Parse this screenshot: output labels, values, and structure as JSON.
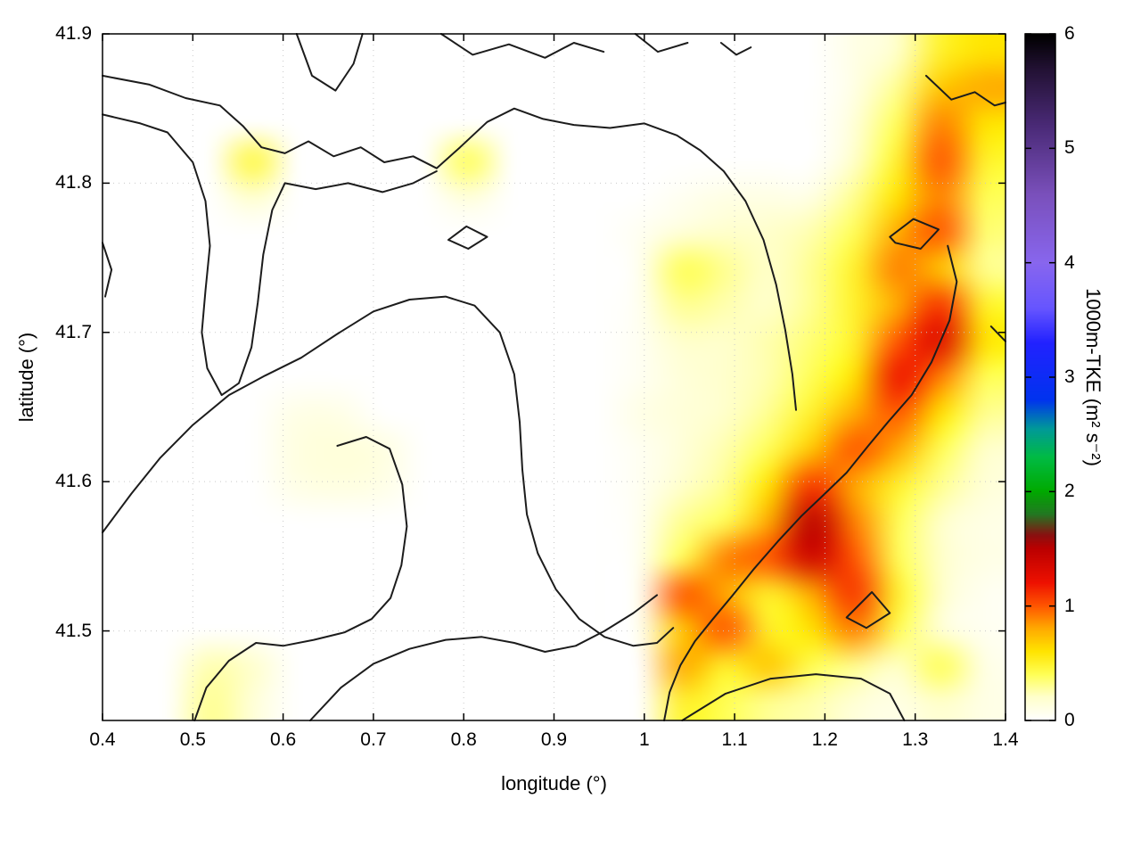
{
  "chart_data": {
    "type": "heatmap",
    "title": "",
    "xlabel": "longitude (°)",
    "ylabel": "latitude (°)",
    "colorbar_label": "1000m-TKE (m² s⁻²)",
    "xlim": [
      0.4,
      1.4
    ],
    "ylim": [
      41.44,
      41.9
    ],
    "cblim": [
      0,
      6
    ],
    "grid": true,
    "legend": "none",
    "x_tick_values": [
      0.4,
      0.5,
      0.6,
      0.7,
      0.8,
      0.9,
      1.0,
      1.1,
      1.2,
      1.3,
      1.4
    ],
    "x_tick_labels": [
      "0.4",
      "0.5",
      "0.6",
      "0.7",
      "0.8",
      "0.9",
      "1",
      "1.1",
      "1.2",
      "1.3",
      "1.4"
    ],
    "y_tick_values": [
      41.5,
      41.6,
      41.7,
      41.8,
      41.9
    ],
    "y_tick_labels": [
      "41.5",
      "41.6",
      "41.7",
      "41.8",
      "41.9"
    ],
    "cb_tick_values": [
      0,
      1,
      2,
      3,
      4,
      5,
      6
    ],
    "cb_tick_labels": [
      "0",
      "1",
      "2",
      "3",
      "4",
      "5",
      "6"
    ],
    "contour_color": "#1c1c1c",
    "palette": [
      [
        0.0,
        "#ffffff"
      ],
      [
        0.2,
        "#ffffcc"
      ],
      [
        0.4,
        "#ffff55"
      ],
      [
        0.6,
        "#ffe400"
      ],
      [
        0.8,
        "#ffaa00"
      ],
      [
        1.0,
        "#ff5500"
      ],
      [
        1.2,
        "#ee1100"
      ],
      [
        1.5,
        "#bb0000"
      ],
      [
        1.62,
        "#881111"
      ],
      [
        1.8,
        "#227722"
      ],
      [
        2.0,
        "#00aa00"
      ],
      [
        2.3,
        "#00bb44"
      ],
      [
        2.55,
        "#009999"
      ],
      [
        2.8,
        "#0033ee"
      ],
      [
        3.3,
        "#2222ff"
      ],
      [
        3.6,
        "#6655ff"
      ],
      [
        4.0,
        "#8866ee"
      ],
      [
        4.6,
        "#7a50bb"
      ],
      [
        5.2,
        "#4a2a77"
      ],
      [
        5.7,
        "#221133"
      ],
      [
        6.0,
        "#000000"
      ]
    ],
    "x": [
      0.4,
      0.45,
      0.5,
      0.55,
      0.6,
      0.65,
      0.7,
      0.75,
      0.8,
      0.85,
      0.9,
      0.95,
      1.0,
      1.05,
      1.1,
      1.15,
      1.2,
      1.25,
      1.3,
      1.35,
      1.4
    ],
    "y": [
      41.9,
      41.875,
      41.85,
      41.825,
      41.8,
      41.775,
      41.75,
      41.725,
      41.7,
      41.675,
      41.65,
      41.625,
      41.6,
      41.575,
      41.55,
      41.525,
      41.5,
      41.475,
      41.45
    ],
    "values": [
      [
        0,
        0,
        0,
        0,
        0,
        0,
        0,
        0,
        0,
        0,
        0,
        0,
        0,
        0,
        0,
        0,
        0,
        0.1,
        0.2,
        0.5,
        0.6
      ],
      [
        0,
        0,
        0,
        0,
        0,
        0,
        0,
        0,
        0,
        0,
        0,
        0,
        0,
        0,
        0,
        0,
        0,
        0.1,
        0.3,
        0.7,
        0.8
      ],
      [
        0,
        0,
        0,
        0,
        0,
        0,
        0,
        0,
        0,
        0,
        0,
        0,
        0,
        0,
        0,
        0,
        0,
        0.15,
        0.4,
        0.9,
        0.6
      ],
      [
        0,
        0,
        0,
        0.45,
        0,
        0,
        0,
        0,
        0.4,
        0,
        0,
        0,
        0,
        0,
        0,
        0,
        0,
        0.2,
        0.5,
        1.0,
        0.5
      ],
      [
        0,
        0,
        0,
        0.2,
        0,
        0,
        0,
        0,
        0.15,
        0,
        0,
        0,
        0,
        0.05,
        0.1,
        0.1,
        0.1,
        0.3,
        0.6,
        0.9,
        0.4
      ],
      [
        0,
        0,
        0,
        0,
        0,
        0,
        0,
        0,
        0,
        0,
        0,
        0,
        0.05,
        0.15,
        0.2,
        0.2,
        0.25,
        0.4,
        0.8,
        1.0,
        0.35
      ],
      [
        0,
        0,
        0,
        0,
        0,
        0,
        0,
        0,
        0,
        0,
        0,
        0,
        0.05,
        0.4,
        0.3,
        0.2,
        0.3,
        0.5,
        0.9,
        0.7,
        0.3
      ],
      [
        0,
        0,
        0,
        0,
        0,
        0,
        0,
        0,
        0,
        0,
        0,
        0,
        0.05,
        0.3,
        0.25,
        0.2,
        0.3,
        0.5,
        0.8,
        1.1,
        0.5
      ],
      [
        0,
        0,
        0,
        0,
        0,
        0,
        0,
        0,
        0,
        0,
        0,
        0,
        0.05,
        0.2,
        0.2,
        0.25,
        0.35,
        0.5,
        1.0,
        1.3,
        0.6
      ],
      [
        0,
        0,
        0,
        0,
        0,
        0,
        0,
        0,
        0,
        0,
        0,
        0,
        0.05,
        0.15,
        0.2,
        0.25,
        0.4,
        0.6,
        1.2,
        0.9,
        0.4
      ],
      [
        0,
        0,
        0,
        0,
        0.1,
        0.1,
        0,
        0,
        0,
        0,
        0,
        0,
        0.1,
        0.15,
        0.2,
        0.3,
        0.5,
        0.8,
        1.0,
        0.6,
        0.3
      ],
      [
        0,
        0,
        0,
        0,
        0.12,
        0.15,
        0.12,
        0,
        0,
        0,
        0,
        0,
        0.05,
        0.15,
        0.25,
        0.4,
        0.7,
        1.0,
        0.8,
        0.4,
        0.2
      ],
      [
        0,
        0,
        0,
        0,
        0.1,
        0.12,
        0.1,
        0,
        0,
        0,
        0,
        0,
        0.05,
        0.2,
        0.3,
        0.6,
        1.1,
        0.8,
        0.5,
        0.3,
        0.15
      ],
      [
        0,
        0,
        0,
        0,
        0,
        0,
        0,
        0,
        0,
        0,
        0,
        0,
        0.05,
        0.3,
        0.4,
        0.8,
        1.5,
        0.9,
        0.4,
        0.2,
        0.1
      ],
      [
        0,
        0,
        0,
        0,
        0,
        0,
        0,
        0,
        0,
        0,
        0,
        0,
        0.05,
        0.4,
        0.9,
        1.0,
        1.4,
        1.0,
        0.4,
        0.2,
        0.1
      ],
      [
        0,
        0,
        0,
        0,
        0,
        0,
        0,
        0,
        0,
        0,
        0,
        0,
        0.05,
        1.0,
        0.8,
        0.5,
        0.8,
        1.1,
        0.5,
        0.2,
        0.05
      ],
      [
        0,
        0,
        0,
        0,
        0,
        0,
        0,
        0,
        0,
        0,
        0,
        0,
        0.05,
        0.7,
        1.0,
        0.5,
        0.6,
        0.9,
        0.4,
        0.15,
        0.05
      ],
      [
        0,
        0,
        0.25,
        0.2,
        0,
        0,
        0,
        0,
        0,
        0,
        0,
        0,
        0,
        0.8,
        0.5,
        0.7,
        0.4,
        0.3,
        0.2,
        0.4,
        0.1
      ],
      [
        0,
        0,
        0.3,
        0.15,
        0,
        0,
        0,
        0,
        0,
        0,
        0,
        0,
        0,
        0.5,
        0.4,
        0.3,
        0.25,
        0.15,
        0.1,
        0.2,
        0.1
      ]
    ],
    "contours": [
      {
        "name": "top-v",
        "points": [
          [
            0.615,
            41.9
          ],
          [
            0.632,
            41.872
          ],
          [
            0.658,
            41.862
          ],
          [
            0.678,
            41.88
          ],
          [
            0.688,
            41.9
          ]
        ]
      },
      {
        "name": "top-squiggle",
        "points": [
          [
            0.775,
            41.9
          ],
          [
            0.81,
            41.886
          ],
          [
            0.85,
            41.893
          ],
          [
            0.89,
            41.884
          ],
          [
            0.922,
            41.894
          ],
          [
            0.955,
            41.888
          ]
        ]
      },
      {
        "name": "top-dash-a",
        "points": [
          [
            0.99,
            41.9
          ],
          [
            1.015,
            41.888
          ],
          [
            1.048,
            41.894
          ]
        ]
      },
      {
        "name": "top-dash-b",
        "points": [
          [
            1.085,
            41.894
          ],
          [
            1.102,
            41.886
          ],
          [
            1.118,
            41.891
          ]
        ]
      },
      {
        "name": "upper-main",
        "points": [
          [
            0.4,
            41.872
          ],
          [
            0.452,
            41.866
          ],
          [
            0.492,
            41.857
          ],
          [
            0.53,
            41.852
          ],
          [
            0.556,
            41.838
          ],
          [
            0.576,
            41.824
          ],
          [
            0.602,
            41.82
          ],
          [
            0.628,
            41.828
          ],
          [
            0.656,
            41.818
          ],
          [
            0.686,
            41.824
          ],
          [
            0.712,
            41.814
          ],
          [
            0.744,
            41.818
          ],
          [
            0.77,
            41.81
          ],
          [
            0.796,
            41.824
          ],
          [
            0.826,
            41.841
          ],
          [
            0.856,
            41.85
          ],
          [
            0.888,
            41.843
          ],
          [
            0.922,
            41.839
          ],
          [
            0.962,
            41.837
          ],
          [
            1.0,
            41.84
          ],
          [
            1.036,
            41.832
          ],
          [
            1.062,
            41.822
          ],
          [
            1.088,
            41.808
          ],
          [
            1.112,
            41.788
          ],
          [
            1.132,
            41.762
          ],
          [
            1.146,
            41.732
          ],
          [
            1.156,
            41.702
          ],
          [
            1.164,
            41.672
          ],
          [
            1.168,
            41.648
          ]
        ]
      },
      {
        "name": "left-u",
        "points": [
          [
            0.4,
            41.846
          ],
          [
            0.442,
            41.84
          ],
          [
            0.472,
            41.834
          ],
          [
            0.5,
            41.814
          ],
          [
            0.514,
            41.788
          ],
          [
            0.519,
            41.758
          ],
          [
            0.514,
            41.728
          ],
          [
            0.51,
            41.7
          ],
          [
            0.516,
            41.676
          ],
          [
            0.532,
            41.658
          ],
          [
            0.551,
            41.666
          ],
          [
            0.565,
            41.69
          ],
          [
            0.572,
            41.72
          ],
          [
            0.578,
            41.752
          ],
          [
            0.588,
            41.782
          ],
          [
            0.602,
            41.8
          ],
          [
            0.636,
            41.796
          ],
          [
            0.672,
            41.8
          ],
          [
            0.71,
            41.794
          ],
          [
            0.744,
            41.8
          ],
          [
            0.77,
            41.808
          ]
        ]
      },
      {
        "name": "left-edge-dash",
        "points": [
          [
            0.4,
            41.76
          ],
          [
            0.41,
            41.742
          ],
          [
            0.403,
            41.724
          ]
        ]
      },
      {
        "name": "mid-dome",
        "points": [
          [
            0.4,
            41.566
          ],
          [
            0.432,
            41.592
          ],
          [
            0.464,
            41.616
          ],
          [
            0.5,
            41.638
          ],
          [
            0.54,
            41.658
          ],
          [
            0.58,
            41.671
          ],
          [
            0.62,
            41.683
          ],
          [
            0.66,
            41.699
          ],
          [
            0.7,
            41.714
          ],
          [
            0.74,
            41.722
          ],
          [
            0.78,
            41.724
          ],
          [
            0.812,
            41.718
          ],
          [
            0.84,
            41.7
          ],
          [
            0.856,
            41.672
          ],
          [
            0.862,
            41.64
          ],
          [
            0.865,
            41.608
          ],
          [
            0.87,
            41.578
          ],
          [
            0.882,
            41.552
          ],
          [
            0.902,
            41.528
          ],
          [
            0.928,
            41.508
          ],
          [
            0.956,
            41.496
          ],
          [
            0.988,
            41.49
          ],
          [
            1.014,
            41.492
          ],
          [
            1.032,
            41.502
          ]
        ]
      },
      {
        "name": "inner-hook",
        "points": [
          [
            0.66,
            41.624
          ],
          [
            0.692,
            41.63
          ],
          [
            0.718,
            41.622
          ],
          [
            0.732,
            41.598
          ],
          [
            0.737,
            41.57
          ],
          [
            0.731,
            41.544
          ],
          [
            0.719,
            41.522
          ],
          [
            0.698,
            41.508
          ],
          [
            0.668,
            41.499
          ],
          [
            0.634,
            41.494
          ],
          [
            0.6,
            41.49
          ],
          [
            0.57,
            41.492
          ],
          [
            0.54,
            41.48
          ],
          [
            0.515,
            41.462
          ],
          [
            0.502,
            41.44
          ]
        ]
      },
      {
        "name": "bottom-left",
        "points": [
          [
            0.63,
            41.44
          ],
          [
            0.664,
            41.462
          ],
          [
            0.7,
            41.478
          ],
          [
            0.74,
            41.488
          ],
          [
            0.78,
            41.494
          ],
          [
            0.82,
            41.496
          ],
          [
            0.856,
            41.492
          ],
          [
            0.89,
            41.486
          ],
          [
            0.924,
            41.49
          ],
          [
            0.956,
            41.5
          ],
          [
            0.988,
            41.512
          ],
          [
            1.014,
            41.524
          ]
        ]
      },
      {
        "name": "small-diamond",
        "points": [
          [
            0.783,
            41.762
          ],
          [
            0.803,
            41.771
          ],
          [
            0.826,
            41.764
          ],
          [
            0.805,
            41.756
          ],
          [
            0.783,
            41.762
          ]
        ]
      },
      {
        "name": "right-hook",
        "points": [
          [
            1.272,
            41.764
          ],
          [
            1.298,
            41.776
          ],
          [
            1.326,
            41.769
          ],
          [
            1.306,
            41.756
          ],
          [
            1.278,
            41.76
          ],
          [
            1.272,
            41.764
          ]
        ]
      },
      {
        "name": "right-diagonal",
        "points": [
          [
            1.336,
            41.758
          ],
          [
            1.346,
            41.734
          ],
          [
            1.338,
            41.708
          ],
          [
            1.318,
            41.68
          ],
          [
            1.296,
            41.658
          ],
          [
            1.27,
            41.64
          ],
          [
            1.248,
            41.624
          ],
          [
            1.224,
            41.606
          ],
          [
            1.2,
            41.592
          ],
          [
            1.174,
            41.577
          ],
          [
            1.148,
            41.56
          ],
          [
            1.122,
            41.542
          ],
          [
            1.098,
            41.524
          ],
          [
            1.076,
            41.508
          ],
          [
            1.056,
            41.493
          ],
          [
            1.04,
            41.477
          ],
          [
            1.028,
            41.459
          ],
          [
            1.022,
            41.44
          ]
        ]
      },
      {
        "name": "small-triangle",
        "points": [
          [
            1.224,
            41.509
          ],
          [
            1.252,
            41.526
          ],
          [
            1.272,
            41.512
          ],
          [
            1.246,
            41.502
          ],
          [
            1.224,
            41.509
          ]
        ]
      },
      {
        "name": "bottom-right",
        "points": [
          [
            1.042,
            41.44
          ],
          [
            1.09,
            41.458
          ],
          [
            1.14,
            41.468
          ],
          [
            1.19,
            41.471
          ],
          [
            1.24,
            41.468
          ],
          [
            1.272,
            41.458
          ],
          [
            1.288,
            41.44
          ]
        ]
      },
      {
        "name": "top-right",
        "points": [
          [
            1.312,
            41.872
          ],
          [
            1.34,
            41.856
          ],
          [
            1.366,
            41.861
          ],
          [
            1.388,
            41.852
          ],
          [
            1.4,
            41.854
          ]
        ]
      },
      {
        "name": "right-edge-dash",
        "points": [
          [
            1.384,
            41.704
          ],
          [
            1.4,
            41.694
          ]
        ]
      }
    ]
  }
}
